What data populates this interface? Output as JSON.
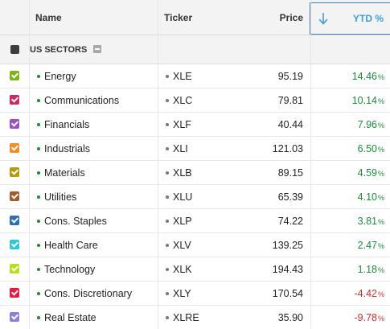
{
  "columns": {
    "name": "Name",
    "ticker": "Ticker",
    "price": "Price",
    "ytd": "YTD %"
  },
  "sort": {
    "column": "ytd",
    "direction": "descending",
    "icon": "arrow-down-icon"
  },
  "group": {
    "label": "US SECTORS",
    "color": "#3a3f3e",
    "collapse_icon": "minus-square-icon"
  },
  "colors": {
    "positive": "#1a8c3a",
    "negative": "#d92b2b",
    "sort_accent": "#3b7fc4",
    "name_dot": "#1a8c3a",
    "ticker_dot": "#777777"
  },
  "rows": [
    {
      "name": "Energy",
      "ticker": "XLE",
      "price": "95.19",
      "ytd": "14.46",
      "ytd_unit": "%",
      "sign": "positive",
      "color": "#7cb518"
    },
    {
      "name": "Communications",
      "ticker": "XLC",
      "price": "79.81",
      "ytd": "10.14",
      "ytd_unit": "%",
      "sign": "positive",
      "color": "#d0285c"
    },
    {
      "name": "Financials",
      "ticker": "XLF",
      "price": "40.44",
      "ytd": "7.96",
      "ytd_unit": "%",
      "sign": "positive",
      "color": "#a24ec5"
    },
    {
      "name": "Industrials",
      "ticker": "XLI",
      "price": "121.03",
      "ytd": "6.50",
      "ytd_unit": "%",
      "sign": "positive",
      "color": "#f28c28"
    },
    {
      "name": "Materials",
      "ticker": "XLB",
      "price": "89.15",
      "ytd": "4.59",
      "ytd_unit": "%",
      "sign": "positive",
      "color": "#b59a10"
    },
    {
      "name": "Utilities",
      "ticker": "XLU",
      "price": "65.39",
      "ytd": "4.10",
      "ytd_unit": "%",
      "sign": "positive",
      "color": "#a65a2a"
    },
    {
      "name": "Cons. Staples",
      "ticker": "XLP",
      "price": "74.22",
      "ytd": "3.81",
      "ytd_unit": "%",
      "sign": "positive",
      "color": "#2f6db5"
    },
    {
      "name": "Health Care",
      "ticker": "XLV",
      "price": "139.25",
      "ytd": "2.47",
      "ytd_unit": "%",
      "sign": "positive",
      "color": "#2fc8d8"
    },
    {
      "name": "Technology",
      "ticker": "XLK",
      "price": "194.43",
      "ytd": "1.18",
      "ytd_unit": "%",
      "sign": "positive",
      "color": "#b6e019"
    },
    {
      "name": "Cons. Discretionary",
      "ticker": "XLY",
      "price": "170.54",
      "ytd": "-4.42",
      "ytd_unit": "%",
      "sign": "negative",
      "color": "#e8183f"
    },
    {
      "name": "Real Estate",
      "ticker": "XLRE",
      "price": "35.90",
      "ytd": "-9.78",
      "ytd_unit": "%",
      "sign": "negative",
      "color": "#8b7fd9"
    }
  ]
}
